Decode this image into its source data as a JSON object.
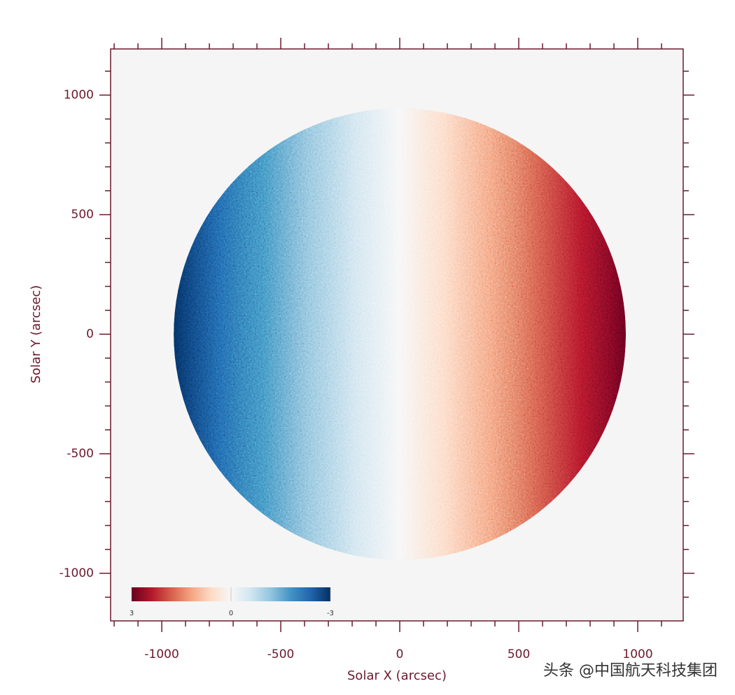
{
  "chart_data": {
    "type": "image",
    "x_label": "Solar X (arcsec)",
    "y_label": "Solar Y (arcsec)",
    "xlim": [
      -1215,
      1191
    ],
    "ylim": [
      -1199,
      1193
    ],
    "xticks": [
      -1000,
      -500,
      0,
      500,
      1000
    ],
    "yticks": [
      -1000,
      -500,
      0,
      500,
      1000
    ],
    "x_minor_ticks": [
      -1200,
      -1100,
      -900,
      -800,
      -700,
      -600,
      -400,
      -300,
      -200,
      -100,
      100,
      200,
      300,
      400,
      600,
      700,
      800,
      900,
      1100
    ],
    "y_minor_ticks": [
      -1100,
      -900,
      -800,
      -700,
      -600,
      -400,
      -300,
      -200,
      -100,
      100,
      200,
      300,
      400,
      600,
      700,
      800,
      900,
      1100
    ],
    "disk": {
      "center_x": 0,
      "center_y": 0,
      "radius": 950
    },
    "colorbar": {
      "clim": [
        3,
        -3
      ],
      "ticks": [
        3,
        0,
        -3
      ],
      "colors": [
        "#67001f",
        "#b2182b",
        "#d6604d",
        "#f4a582",
        "#fddbc7",
        "#f7f7f7",
        "#d1e5f0",
        "#92c5de",
        "#4393c3",
        "#2166ac",
        "#053061"
      ]
    },
    "axis_color": "#6b1a2e",
    "watermark": "头条 @中国航天科技集团"
  }
}
